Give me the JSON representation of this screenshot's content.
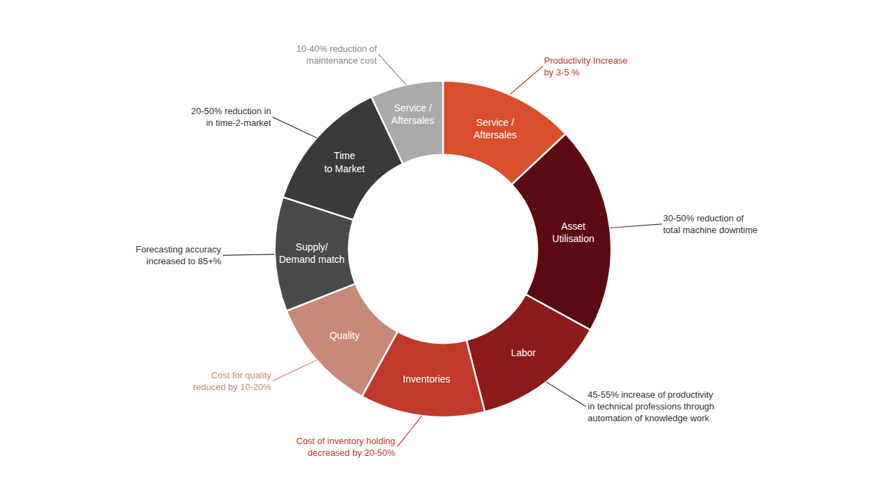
{
  "chart_data": {
    "type": "donut",
    "categories": [
      "Service /\nAftersales",
      "Asset\nUtilisation",
      "Labor",
      "Inventories",
      "Quality",
      "Supply/\nDemand match",
      "Time\nto Market",
      "Service /\nAftersales"
    ],
    "values": [
      13,
      20,
      13,
      12,
      11,
      11,
      13,
      7
    ],
    "colors": [
      "#d94f2b",
      "#5c0a12",
      "#8b1a1a",
      "#c0392b",
      "#c8897a",
      "#4a4a4a",
      "#3a3a3a",
      "#aaaaaa"
    ],
    "annotations": [
      {
        "text": "Productivity Increase\nby 3-5 %",
        "color": "#c0392b"
      },
      {
        "text": "30-50% reduction of\ntotal machine downtime",
        "color": "#333333"
      },
      {
        "text": "45-55% increase of productivity\nin technical professions through\nautomation of knowledge work",
        "color": "#333333"
      },
      {
        "text": "Cost of inventory holding\ndecreased by 20-50%",
        "color": "#c0392b"
      },
      {
        "text": "Cost for quality\nreduced by 10-20%",
        "color": "#c8897a"
      },
      {
        "text": "Forecasting accuracy\nincreased to 85+%",
        "color": "#333333"
      },
      {
        "text": "20-50% reduction in\nin time-2-market",
        "color": "#333333"
      },
      {
        "text": "10-40% reduction of\nmaintenance cost",
        "color": "#888888"
      }
    ]
  }
}
